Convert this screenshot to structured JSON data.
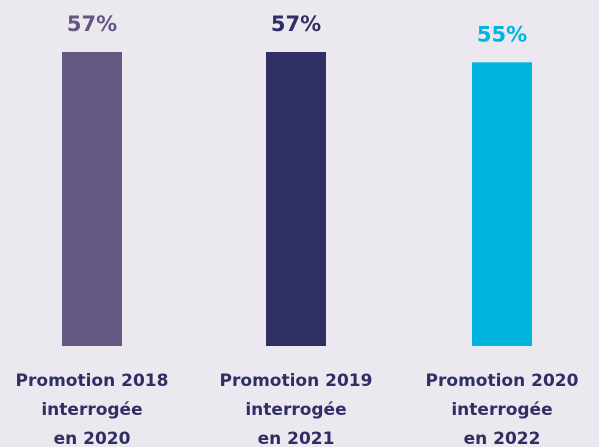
{
  "chart_data": {
    "type": "bar",
    "categories": [
      [
        "Promotion 2018",
        "interrogée",
        "en 2020"
      ],
      [
        "Promotion 2019",
        "interrogée",
        "en 2021"
      ],
      [
        "Promotion 2020",
        "interrogée",
        "en 2022"
      ]
    ],
    "values": [
      57,
      57,
      55
    ],
    "value_labels": [
      "57%",
      "57%",
      "55%"
    ],
    "colors": [
      "#625882",
      "#2f2f63",
      "#00b4e0"
    ]
  }
}
